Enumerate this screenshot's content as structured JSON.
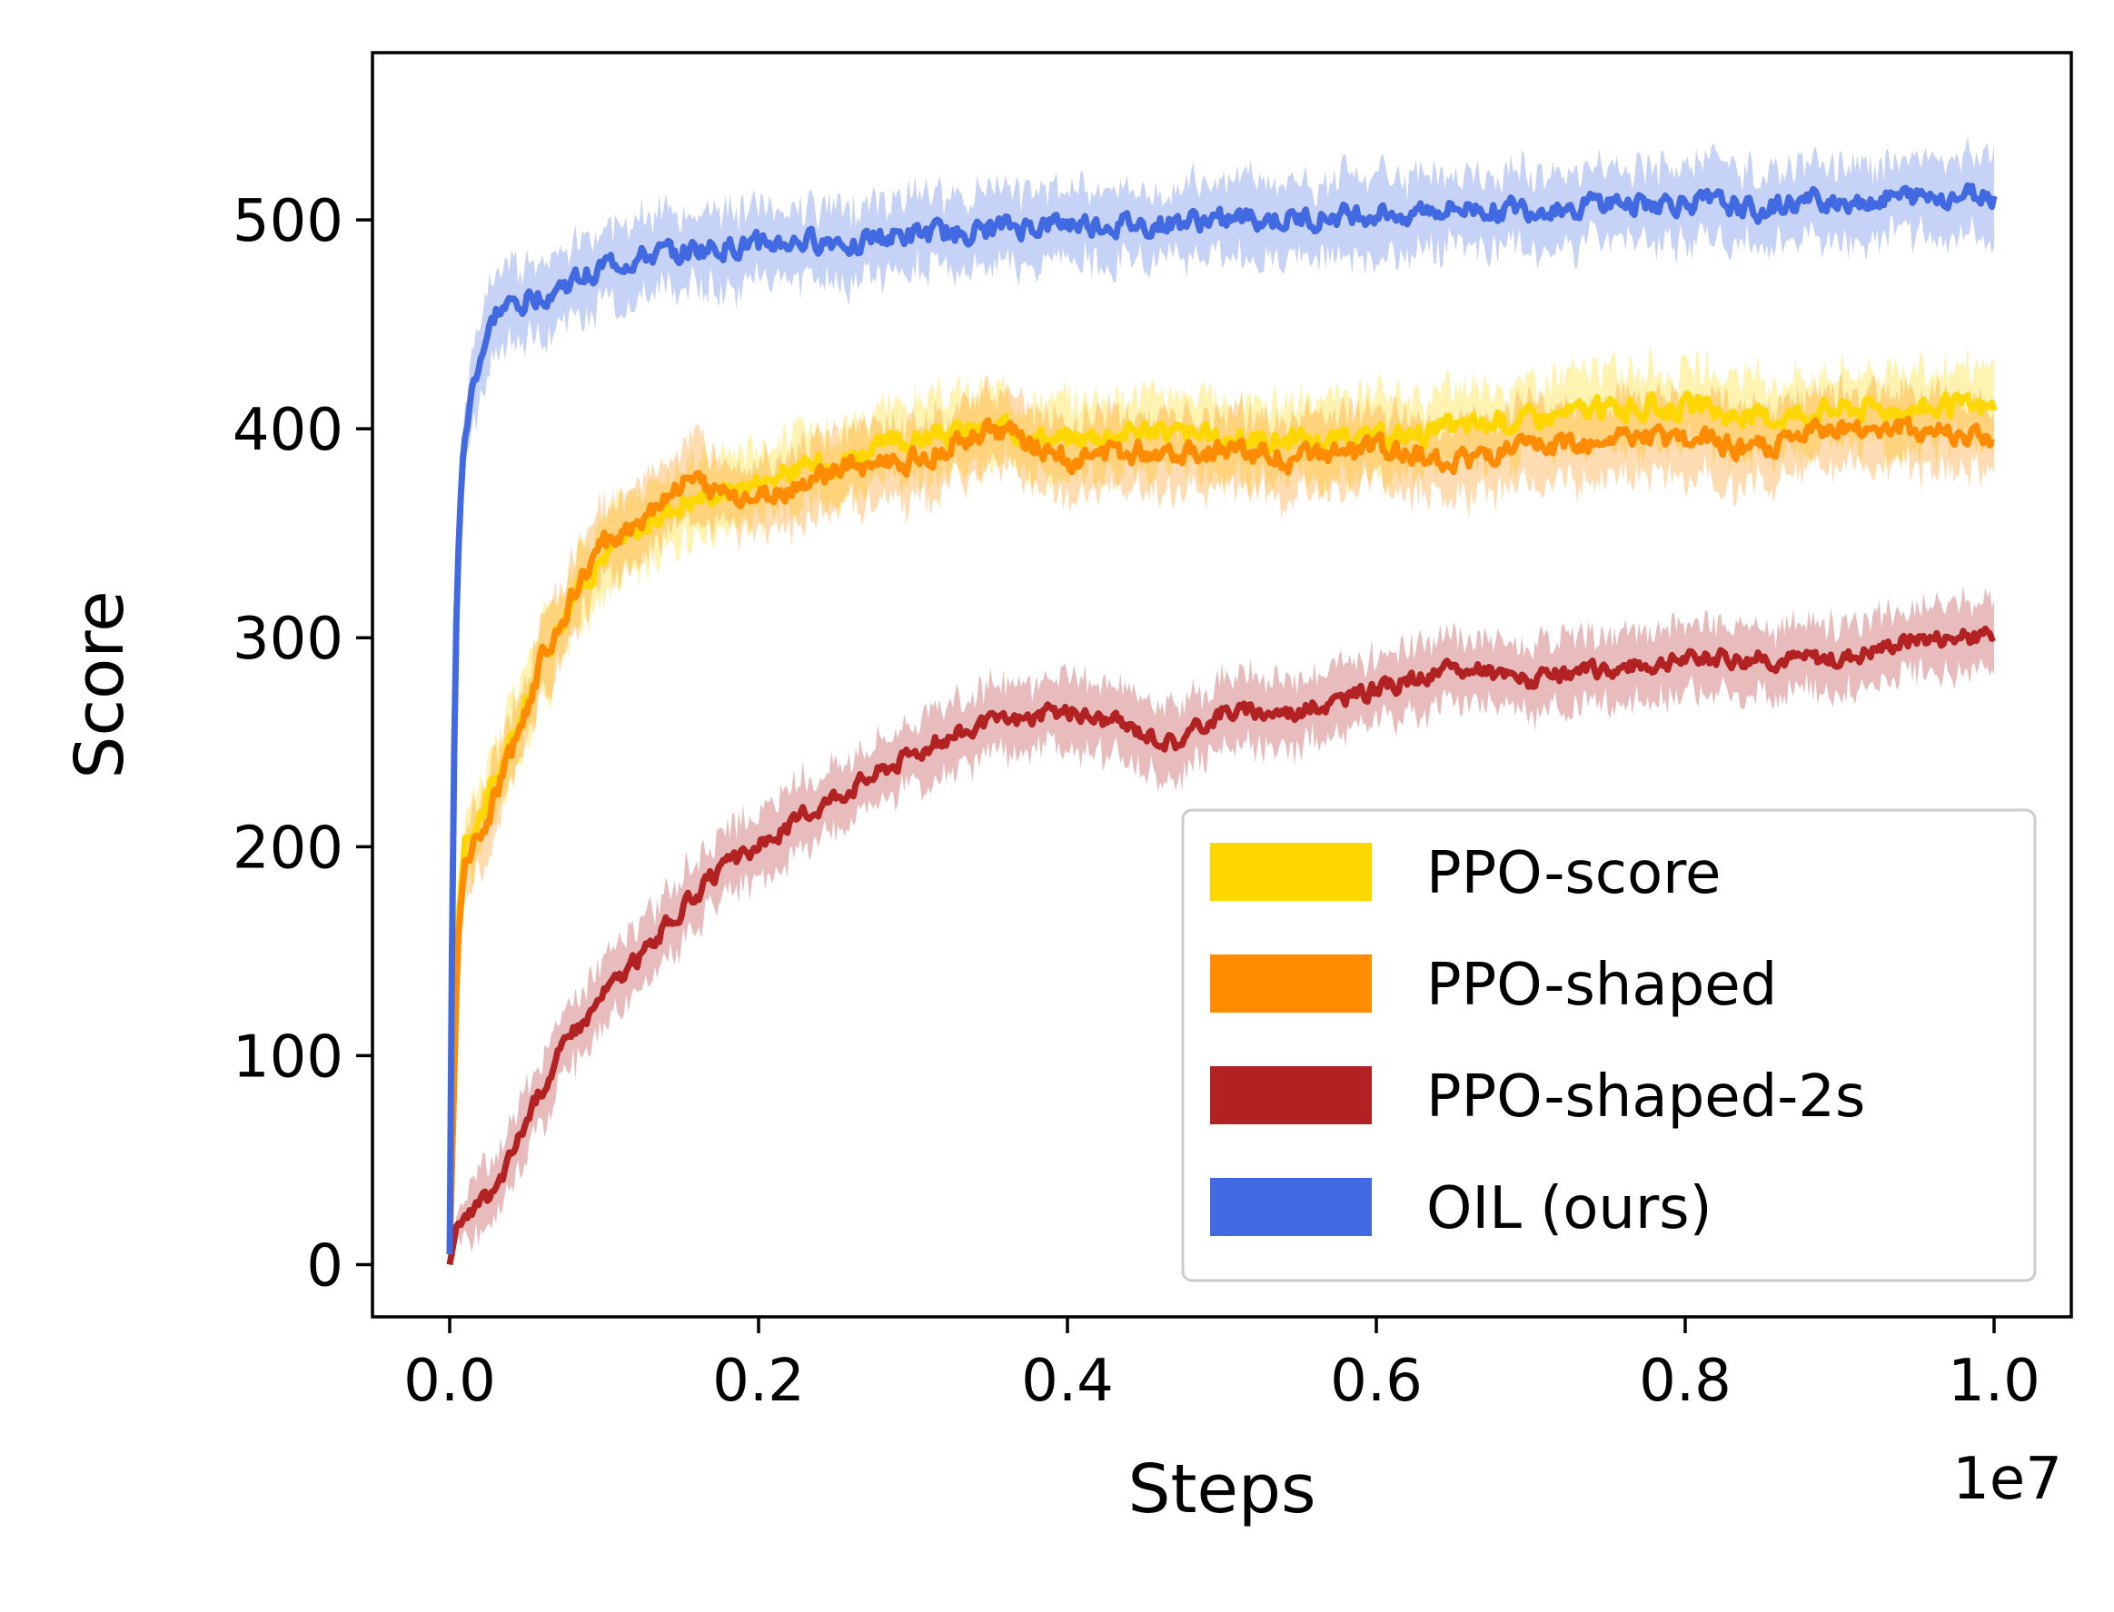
{
  "chart_data": {
    "type": "line",
    "xlabel": "Steps",
    "ylabel": "Score",
    "x_offset_text": "1e7",
    "xlim": [
      -0.05,
      1.05
    ],
    "ylim": [
      -25,
      580
    ],
    "x_ticks": [
      0.0,
      0.2,
      0.4,
      0.6,
      0.8,
      1.0
    ],
    "x_tick_labels": [
      "0.0",
      "0.2",
      "0.4",
      "0.6",
      "0.8",
      "1.0"
    ],
    "y_ticks": [
      0,
      100,
      200,
      300,
      400,
      500
    ],
    "y_tick_labels": [
      "0",
      "100",
      "200",
      "300",
      "400",
      "500"
    ],
    "grid": false,
    "legend_position": "lower right",
    "shaded_band": "mean ± spread",
    "series": [
      {
        "name": "PPO-score",
        "color": "#FFD700",
        "x": [
          0.0,
          0.005,
          0.01,
          0.02,
          0.04,
          0.06,
          0.08,
          0.1,
          0.12,
          0.15,
          0.2,
          0.25,
          0.3,
          0.35,
          0.4,
          0.45,
          0.5,
          0.55,
          0.6,
          0.65,
          0.7,
          0.75,
          0.8,
          0.85,
          0.9,
          0.95,
          1.0
        ],
        "y": [
          5,
          160,
          205,
          215,
          250,
          290,
          320,
          340,
          350,
          365,
          375,
          385,
          395,
          400,
          395,
          400,
          395,
          395,
          395,
          400,
          405,
          410,
          410,
          405,
          410,
          410,
          410
        ]
      },
      {
        "name": "PPO-shaped",
        "color": "#FF8C00",
        "x": [
          0.0,
          0.005,
          0.01,
          0.02,
          0.04,
          0.06,
          0.08,
          0.1,
          0.12,
          0.15,
          0.2,
          0.25,
          0.3,
          0.35,
          0.4,
          0.45,
          0.5,
          0.55,
          0.6,
          0.65,
          0.7,
          0.75,
          0.8,
          0.85,
          0.9,
          0.95,
          1.0
        ],
        "y": [
          5,
          150,
          195,
          205,
          245,
          290,
          320,
          345,
          355,
          375,
          365,
          380,
          385,
          400,
          385,
          390,
          390,
          385,
          390,
          385,
          390,
          395,
          395,
          390,
          400,
          400,
          395
        ]
      },
      {
        "name": "PPO-shaped-2s",
        "color": "#B22222",
        "x": [
          0.0,
          0.005,
          0.01,
          0.03,
          0.05,
          0.07,
          0.1,
          0.12,
          0.15,
          0.17,
          0.2,
          0.25,
          0.3,
          0.33,
          0.36,
          0.4,
          0.43,
          0.47,
          0.5,
          0.55,
          0.6,
          0.65,
          0.7,
          0.75,
          0.8,
          0.85,
          0.9,
          0.95,
          1.0
        ],
        "y": [
          0,
          20,
          22,
          35,
          70,
          100,
          130,
          145,
          170,
          185,
          200,
          225,
          245,
          255,
          260,
          265,
          260,
          250,
          265,
          265,
          275,
          285,
          280,
          285,
          290,
          290,
          290,
          300,
          300
        ]
      },
      {
        "name": "OIL (ours)",
        "color": "#4169E1",
        "x": [
          0.0,
          0.002,
          0.004,
          0.006,
          0.008,
          0.01,
          0.015,
          0.02,
          0.03,
          0.05,
          0.08,
          0.1,
          0.15,
          0.2,
          0.25,
          0.3,
          0.35,
          0.4,
          0.45,
          0.5,
          0.55,
          0.6,
          0.65,
          0.7,
          0.75,
          0.8,
          0.85,
          0.9,
          0.95,
          1.0
        ],
        "y": [
          5,
          200,
          300,
          350,
          380,
          395,
          420,
          435,
          455,
          462,
          470,
          478,
          485,
          488,
          490,
          492,
          495,
          498,
          497,
          500,
          500,
          503,
          505,
          505,
          508,
          508,
          505,
          510,
          510,
          512
        ]
      }
    ]
  }
}
